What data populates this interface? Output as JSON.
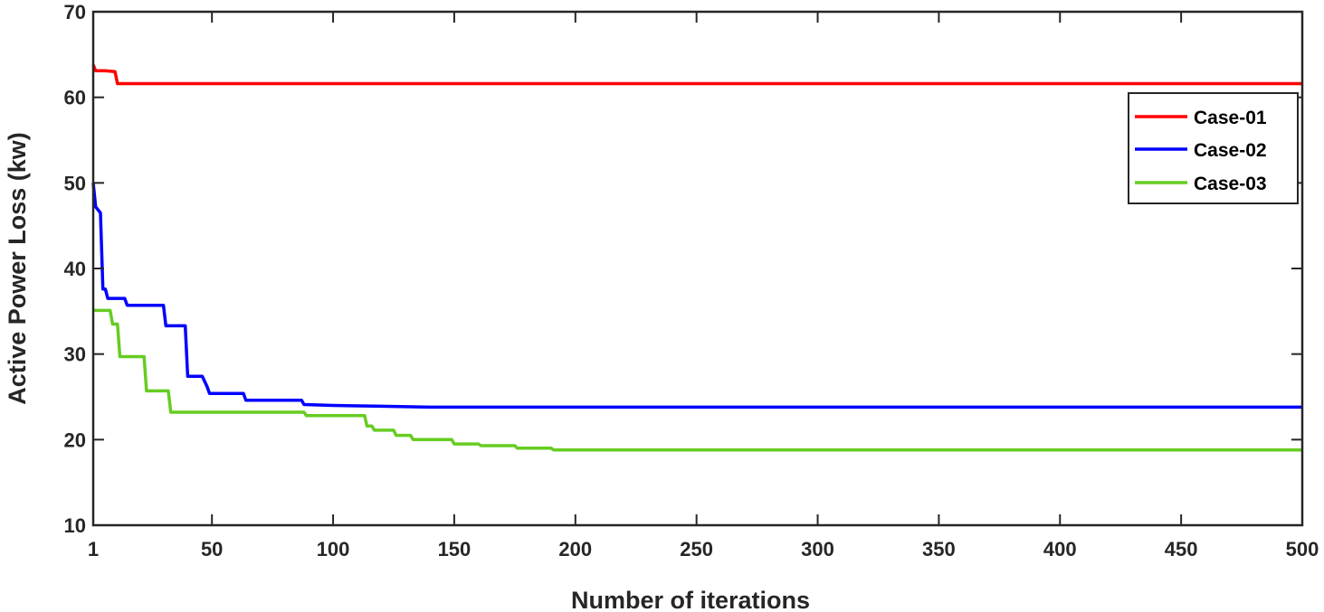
{
  "chart_data": {
    "type": "line",
    "xlabel": "Number of iterations",
    "ylabel": "Active Power Loss (kw)",
    "xlim": [
      1,
      500
    ],
    "ylim": [
      10,
      70
    ],
    "xticks": [
      1,
      50,
      100,
      150,
      200,
      250,
      300,
      350,
      400,
      450,
      500
    ],
    "yticks": [
      10,
      20,
      30,
      40,
      50,
      60,
      70
    ],
    "grid": false,
    "legend_position": "top-right",
    "series": [
      {
        "name": "Case-01",
        "color": "#ff0000",
        "points": [
          [
            1,
            63.8
          ],
          [
            2,
            63.1
          ],
          [
            6,
            63.1
          ],
          [
            10,
            63.0
          ],
          [
            11,
            61.6
          ],
          [
            20,
            61.6
          ],
          [
            500,
            61.6
          ]
        ]
      },
      {
        "name": "Case-02",
        "color": "#0000ff",
        "points": [
          [
            1,
            50.0
          ],
          [
            2,
            47.2
          ],
          [
            4,
            46.5
          ],
          [
            5,
            37.6
          ],
          [
            6,
            37.6
          ],
          [
            7,
            36.5
          ],
          [
            14,
            36.5
          ],
          [
            15,
            35.7
          ],
          [
            30,
            35.7
          ],
          [
            31,
            33.3
          ],
          [
            39,
            33.3
          ],
          [
            40,
            27.4
          ],
          [
            46,
            27.4
          ],
          [
            47,
            26.8
          ],
          [
            48,
            26.2
          ],
          [
            49,
            25.4
          ],
          [
            63,
            25.4
          ],
          [
            64,
            24.6
          ],
          [
            87,
            24.6
          ],
          [
            88,
            24.1
          ],
          [
            100,
            24.0
          ],
          [
            120,
            23.9
          ],
          [
            140,
            23.8
          ],
          [
            500,
            23.8
          ]
        ]
      },
      {
        "name": "Case-03",
        "color": "#66cc22",
        "points": [
          [
            1,
            35.1
          ],
          [
            8,
            35.1
          ],
          [
            9,
            33.5
          ],
          [
            11,
            33.5
          ],
          [
            12,
            29.7
          ],
          [
            22,
            29.7
          ],
          [
            23,
            25.7
          ],
          [
            32,
            25.7
          ],
          [
            33,
            23.2
          ],
          [
            88,
            23.2
          ],
          [
            89,
            22.8
          ],
          [
            113,
            22.8
          ],
          [
            114,
            21.6
          ],
          [
            116,
            21.6
          ],
          [
            117,
            21.1
          ],
          [
            125,
            21.1
          ],
          [
            126,
            20.5
          ],
          [
            132,
            20.5
          ],
          [
            133,
            20.0
          ],
          [
            149,
            20.0
          ],
          [
            150,
            19.5
          ],
          [
            160,
            19.5
          ],
          [
            161,
            19.3
          ],
          [
            175,
            19.3
          ],
          [
            176,
            19.0
          ],
          [
            190,
            19.0
          ],
          [
            191,
            18.8
          ],
          [
            220,
            18.8
          ],
          [
            500,
            18.8
          ]
        ]
      }
    ]
  }
}
